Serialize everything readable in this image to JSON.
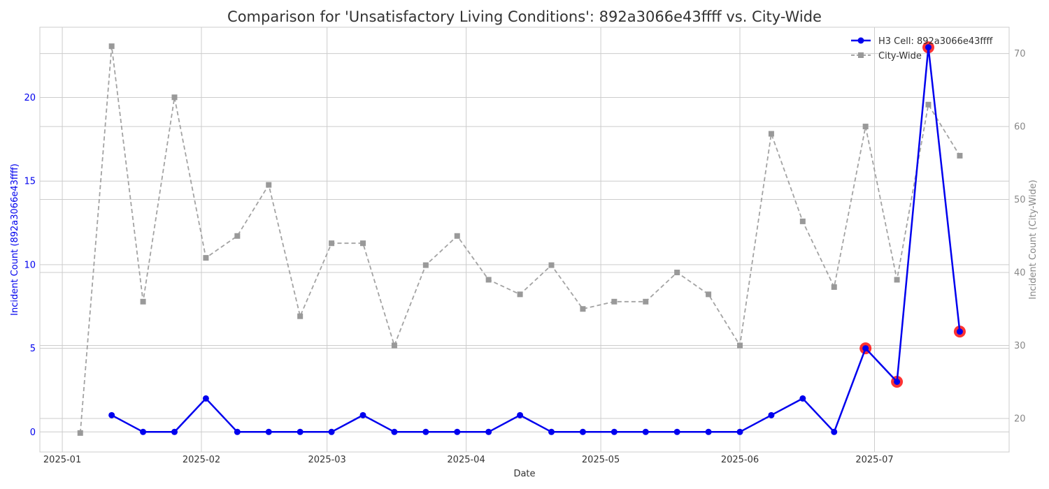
{
  "chart_data": {
    "type": "line",
    "title": "Comparison for 'Unsatisfactory Living Conditions': 892a3066e43ffff vs. City-Wide",
    "xlabel": "Date",
    "ylabel_left": "Incident Count (892a3066e43ffff)",
    "ylabel_right": "Incident Count (City-Wide)",
    "x_ticks": [
      "2025-01",
      "2025-02",
      "2025-03",
      "2025-04",
      "2025-05",
      "2025-06",
      "2025-07"
    ],
    "x_tick_dates": [
      "2025-01-01",
      "2025-02-01",
      "2025-03-01",
      "2025-04-01",
      "2025-05-01",
      "2025-06-01",
      "2025-07-01"
    ],
    "x_range": [
      "2024-12-27",
      "2025-07-31"
    ],
    "y_left_ticks": [
      0,
      5,
      10,
      15,
      20
    ],
    "y_left_range": [
      -1.2,
      24.2
    ],
    "y_right_ticks": [
      20,
      30,
      40,
      50,
      60,
      70
    ],
    "y_right_range": [
      15.4,
      73.6
    ],
    "grid": true,
    "legend_position": "top-right",
    "series": [
      {
        "name": "H3 Cell: 892a3066e43ffff",
        "axis": "left",
        "color": "#0000ee",
        "marker": "circle",
        "line_style": "solid",
        "x": [
          "2025-01-12",
          "2025-01-19",
          "2025-01-26",
          "2025-02-02",
          "2025-02-09",
          "2025-02-16",
          "2025-02-23",
          "2025-03-02",
          "2025-03-09",
          "2025-03-16",
          "2025-03-23",
          "2025-03-30",
          "2025-04-06",
          "2025-04-13",
          "2025-04-20",
          "2025-04-27",
          "2025-05-04",
          "2025-05-11",
          "2025-05-18",
          "2025-05-25",
          "2025-06-01",
          "2025-06-08",
          "2025-06-15",
          "2025-06-22",
          "2025-06-29",
          "2025-07-06",
          "2025-07-13",
          "2025-07-20"
        ],
        "y": [
          1,
          0,
          0,
          2,
          0,
          0,
          0,
          0,
          1,
          0,
          0,
          0,
          0,
          1,
          0,
          0,
          0,
          0,
          0,
          0,
          0,
          1,
          2,
          0,
          5,
          3,
          23,
          6
        ]
      },
      {
        "name": "City-Wide",
        "axis": "right",
        "color": "#999999",
        "marker": "square",
        "line_style": "dashed",
        "x": [
          "2025-01-05",
          "2025-01-12",
          "2025-01-19",
          "2025-01-26",
          "2025-02-02",
          "2025-02-09",
          "2025-02-16",
          "2025-02-23",
          "2025-03-02",
          "2025-03-09",
          "2025-03-16",
          "2025-03-23",
          "2025-03-30",
          "2025-04-06",
          "2025-04-13",
          "2025-04-20",
          "2025-04-27",
          "2025-05-04",
          "2025-05-11",
          "2025-05-18",
          "2025-05-25",
          "2025-06-01",
          "2025-06-08",
          "2025-06-15",
          "2025-06-22",
          "2025-06-29",
          "2025-07-06",
          "2025-07-13",
          "2025-07-20"
        ],
        "y": [
          18,
          71,
          36,
          64,
          42,
          45,
          52,
          34,
          44,
          44,
          30,
          41,
          45,
          39,
          37,
          41,
          35,
          36,
          36,
          40,
          37,
          30,
          59,
          47,
          38,
          60,
          39,
          63,
          56
        ]
      }
    ],
    "highlighted_points": {
      "color": "#ff0000",
      "x": [
        "2025-06-29",
        "2025-07-06",
        "2025-07-13",
        "2025-07-20"
      ],
      "y": [
        5,
        3,
        23,
        6
      ]
    }
  }
}
